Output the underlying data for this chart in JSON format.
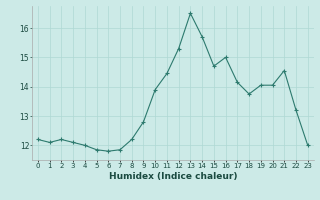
{
  "x": [
    0,
    1,
    2,
    3,
    4,
    5,
    6,
    7,
    8,
    9,
    10,
    11,
    12,
    13,
    14,
    15,
    16,
    17,
    18,
    19,
    20,
    21,
    22,
    23
  ],
  "y": [
    12.2,
    12.1,
    12.2,
    12.1,
    12.0,
    11.85,
    11.8,
    11.85,
    12.2,
    12.8,
    13.9,
    14.45,
    15.3,
    16.5,
    15.7,
    14.7,
    15.0,
    14.15,
    13.75,
    14.05,
    14.05,
    14.55,
    13.2,
    12.0
  ],
  "xlabel": "Humidex (Indice chaleur)",
  "ylim": [
    11.5,
    16.75
  ],
  "xlim": [
    -0.5,
    23.5
  ],
  "yticks": [
    12,
    13,
    14,
    15,
    16
  ],
  "xtick_labels": [
    "0",
    "1",
    "2",
    "3",
    "4",
    "5",
    "6",
    "7",
    "8",
    "9",
    "10",
    "11",
    "12",
    "13",
    "14",
    "15",
    "16",
    "17",
    "18",
    "19",
    "20",
    "21",
    "22",
    "23"
  ],
  "line_color": "#2d7a6e",
  "marker": "+",
  "bg_color": "#cceae7",
  "grid_color": "#afd8d4",
  "label_color": "#1a4a40"
}
